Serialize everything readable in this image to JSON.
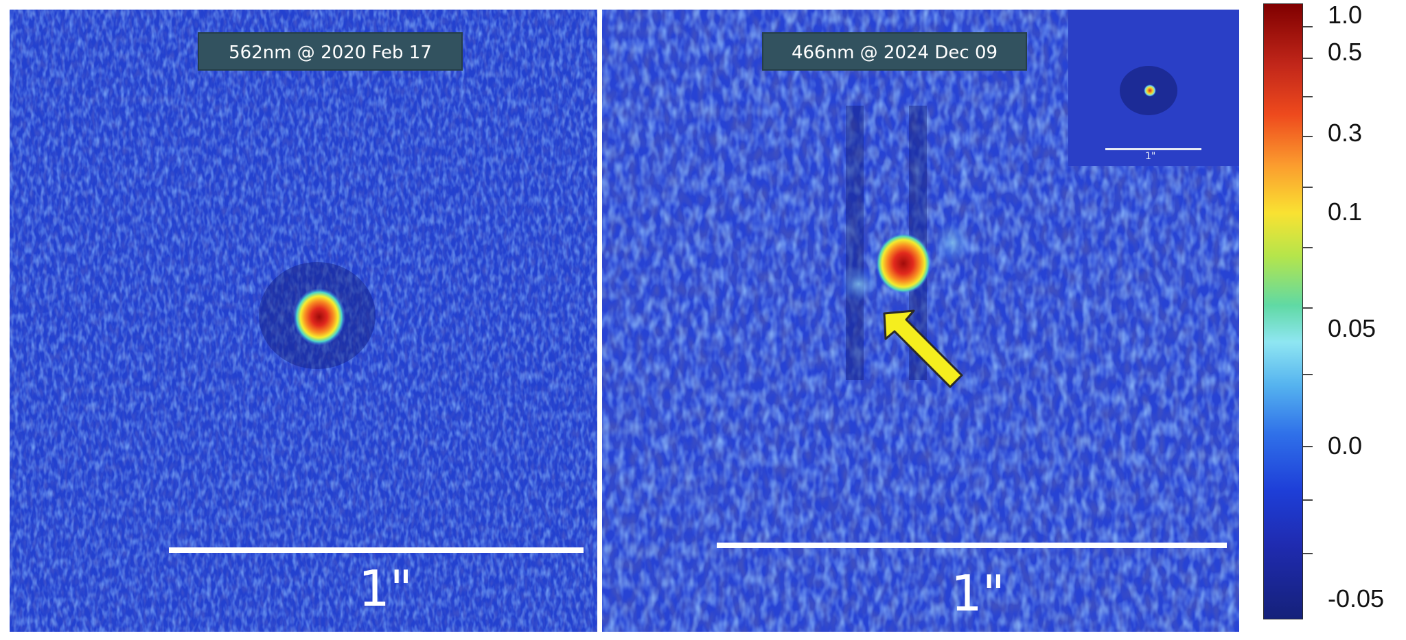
{
  "panels": [
    {
      "label": "562nm @ 2020 Feb 17",
      "scale_label": "1\""
    },
    {
      "label": "466nm @ 2024 Dec 09",
      "scale_label": "1\""
    }
  ],
  "inset": {
    "scale_label": "1\""
  },
  "colorbar": {
    "labels": [
      "1.0",
      "0.5",
      "0.3",
      "0.1",
      "0.05",
      "0.0",
      "-0.05"
    ],
    "colormap": "jet",
    "colors": {
      "max": "#800000",
      "high": "#ee4a1d",
      "mid": "#f9e232",
      "low": "#8fe6f2",
      "background": "#1e3fd8",
      "min": "#15217a"
    }
  },
  "annotation": {
    "arrow_color": "#f5ee1e"
  }
}
